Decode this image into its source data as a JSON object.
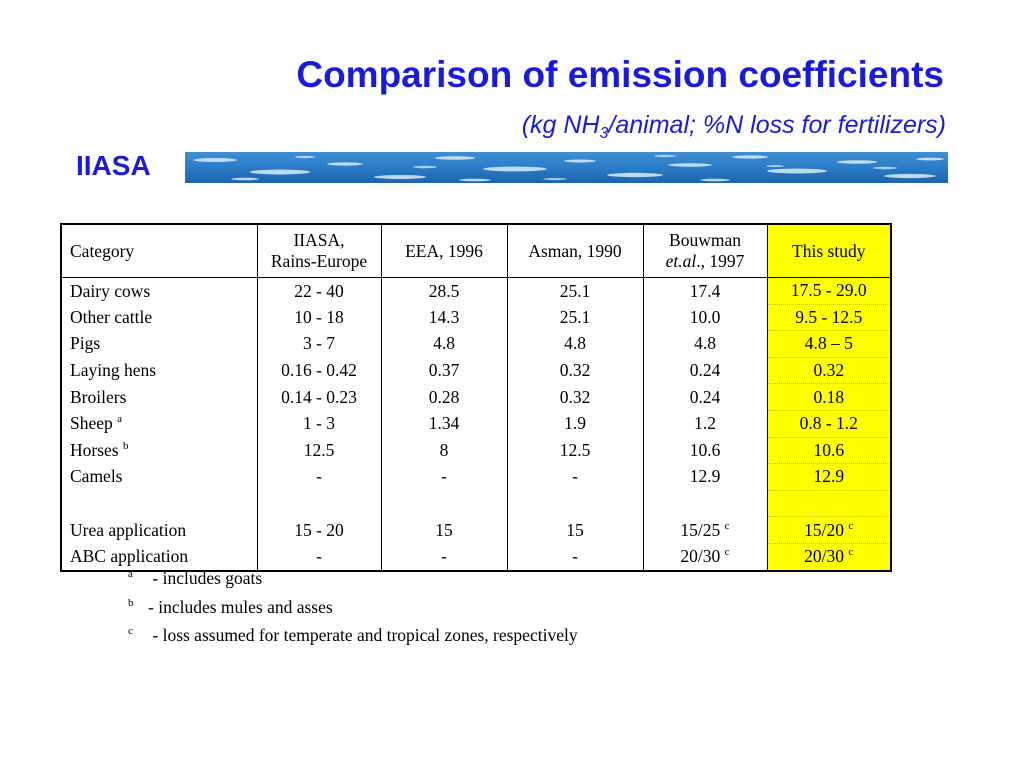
{
  "header": {
    "title": "Comparison of emission coefficients",
    "subtitle_prefix": "(kg NH",
    "subtitle_sub": "3",
    "subtitle_suffix": "/animal; %N loss for fertilizers)",
    "org": "IIASA"
  },
  "colors": {
    "heading": "#1a1adc",
    "highlight": "#ffff00",
    "banner_water": "#2a7cc7"
  },
  "table": {
    "headers": {
      "category": "Category",
      "iiasa_line1": "IIASA,",
      "iiasa_line2": "Rains-Europe",
      "eea": "EEA, 1996",
      "asman": "Asman, 1990",
      "bouwman_line1": "Bouwman",
      "bouwman_italic": "et.al",
      "bouwman_rest": "., 1997",
      "study": "This study"
    },
    "rows": [
      {
        "category": "Dairy cows",
        "cat_sup": "",
        "iiasa": "22 - 40",
        "eea": "28.5",
        "asman": "25.1",
        "bouwman": "17.4",
        "bouwman_sup": "",
        "study": "17.5 - 29.0",
        "study_sup": ""
      },
      {
        "category": "Other cattle",
        "cat_sup": "",
        "iiasa": "10 - 18",
        "eea": "14.3",
        "asman": "25.1",
        "bouwman": "10.0",
        "bouwman_sup": "",
        "study": "9.5 - 12.5",
        "study_sup": ""
      },
      {
        "category": "Pigs",
        "cat_sup": "",
        "iiasa": "3 - 7",
        "eea": "4.8",
        "asman": "4.8",
        "bouwman": "4.8",
        "bouwman_sup": "",
        "study": "4.8 – 5",
        "study_sup": ""
      },
      {
        "category": "Laying hens",
        "cat_sup": "",
        "iiasa": "0.16 - 0.42",
        "eea": "0.37",
        "asman": "0.32",
        "bouwman": "0.24",
        "bouwman_sup": "",
        "study": "0.32",
        "study_sup": ""
      },
      {
        "category": "Broilers",
        "cat_sup": "",
        "iiasa": "0.14 - 0.23",
        "eea": "0.28",
        "asman": "0.32",
        "bouwman": "0.24",
        "bouwman_sup": "",
        "study": "0.18",
        "study_sup": ""
      },
      {
        "category": "Sheep",
        "cat_sup": "a",
        "iiasa": "1 - 3",
        "eea": "1.34",
        "asman": "1.9",
        "bouwman": "1.2",
        "bouwman_sup": "",
        "study": "0.8 - 1.2",
        "study_sup": ""
      },
      {
        "category": "Horses",
        "cat_sup": "b",
        "iiasa": "12.5",
        "eea": "8",
        "asman": "12.5",
        "bouwman": "10.6",
        "bouwman_sup": "",
        "study": "10.6",
        "study_sup": ""
      },
      {
        "category": "Camels",
        "cat_sup": "",
        "iiasa": "-",
        "eea": "-",
        "asman": "-",
        "bouwman": "12.9",
        "bouwman_sup": "",
        "study": "12.9",
        "study_sup": ""
      },
      {
        "category": "",
        "cat_sup": "",
        "iiasa": "",
        "eea": "",
        "asman": "",
        "bouwman": "",
        "bouwman_sup": "",
        "study": "",
        "study_sup": ""
      },
      {
        "category": "Urea application",
        "cat_sup": "",
        "iiasa": "15 - 20",
        "eea": "15",
        "asman": "15",
        "bouwman": "15/25",
        "bouwman_sup": "c",
        "study": "15/20",
        "study_sup": "c"
      },
      {
        "category": "ABC application",
        "cat_sup": "",
        "iiasa": "-",
        "eea": "-",
        "asman": "-",
        "bouwman": "20/30",
        "bouwman_sup": "c",
        "study": "20/30",
        "study_sup": "c"
      }
    ]
  },
  "footnotes": [
    {
      "mark": "a",
      "text": " - includes goats"
    },
    {
      "mark": "b",
      "text": "- includes mules and asses"
    },
    {
      "mark": "c",
      "text": " - loss assumed for temperate and tropical zones, respectively"
    }
  ]
}
